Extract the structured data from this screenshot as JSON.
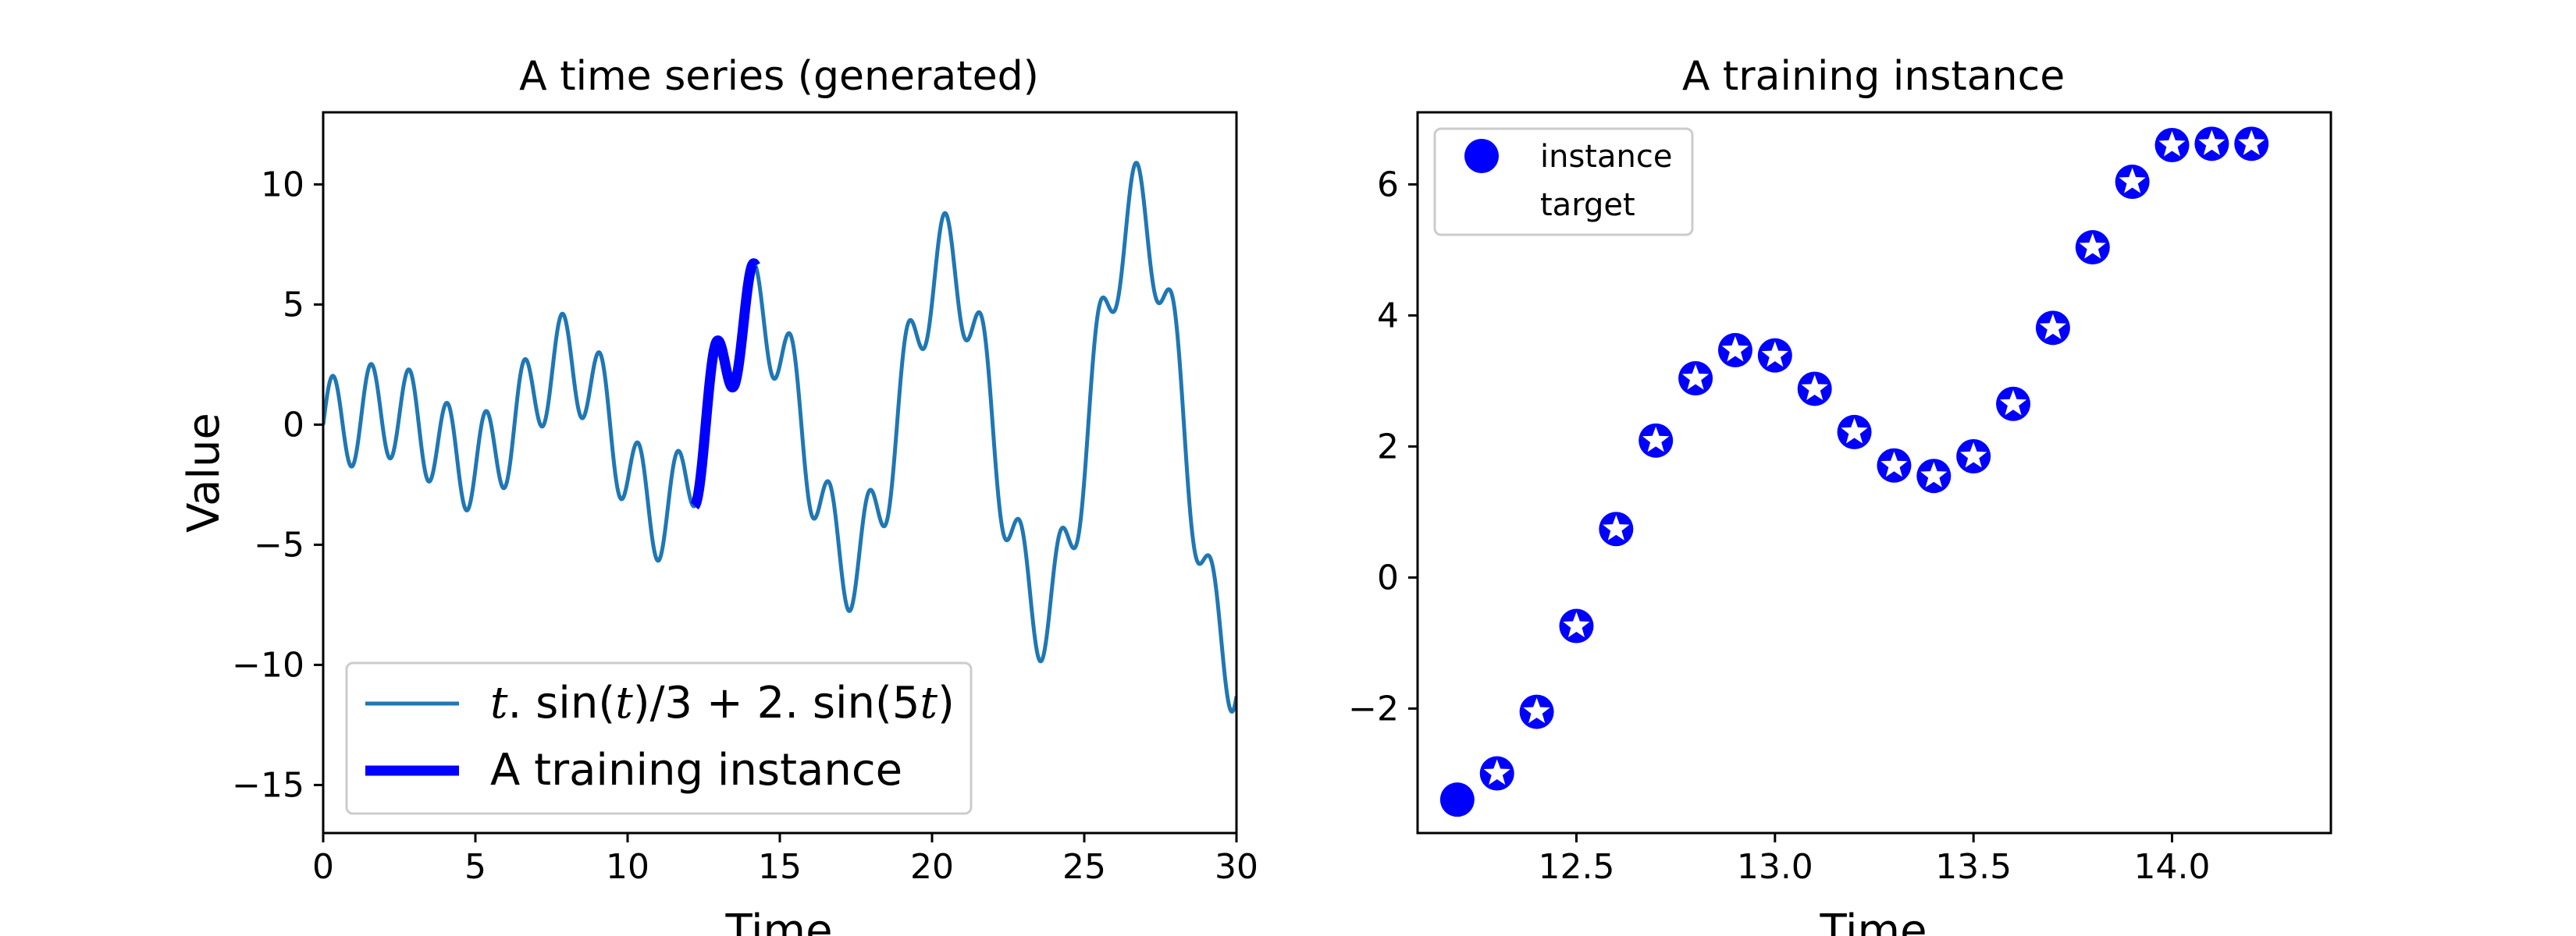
{
  "chart_data": [
    {
      "type": "line",
      "title": "A time series (generated)",
      "xlabel": "Time",
      "ylabel": "Value",
      "xlim": [
        0,
        30
      ],
      "ylim": [
        -17,
        13
      ],
      "xticks": [
        "0",
        "5",
        "10",
        "15",
        "20",
        "25",
        "30"
      ],
      "yticks": [
        "−15",
        "−10",
        "−5",
        "0",
        "5",
        "10"
      ],
      "xtick_values": [
        0,
        5,
        10,
        15,
        20,
        25,
        30
      ],
      "ytick_values": [
        -15,
        -10,
        -5,
        0,
        5,
        10
      ],
      "function": "t*sin(t)/3 + 2*sin(5t)",
      "series": [
        {
          "name": "t. sin(t)/3 + 2. sin(5t)",
          "color": "#1f77b4",
          "x_range": [
            0,
            30
          ]
        },
        {
          "name": "A training instance",
          "color": "#0000ff",
          "x_range": [
            12.2,
            14.2
          ]
        }
      ],
      "legend": {
        "placement": "lower-left",
        "entries": [
          {
            "label_parts": [
              "t",
              ". sin(",
              "t",
              ")/3 + 2. sin(5",
              "t",
              ")"
            ]
          },
          {
            "label": "A training instance"
          }
        ]
      }
    },
    {
      "type": "scatter",
      "title": "A training instance",
      "xlabel": "Time",
      "ylabel": "",
      "xlim": [
        12.1,
        14.4
      ],
      "ylim": [
        -3.9,
        7.1
      ],
      "xticks": [
        "12.5",
        "13.0",
        "13.5",
        "14.0"
      ],
      "yticks": [
        "−2",
        "0",
        "2",
        "4",
        "6"
      ],
      "xtick_values": [
        12.5,
        13.0,
        13.5,
        14.0
      ],
      "ytick_values": [
        -2,
        0,
        2,
        4,
        6
      ],
      "series": [
        {
          "name": "instance",
          "marker": "circle",
          "color": "#0000ff",
          "x": [
            12.2,
            12.3,
            12.4,
            12.5,
            12.6,
            12.7,
            12.8,
            12.9,
            13.0,
            13.1,
            13.2,
            13.3,
            13.4,
            13.5,
            13.6,
            13.7,
            13.8,
            13.9,
            14.0,
            14.1
          ],
          "y": [
            -3.39,
            -2.99,
            -2.05,
            -0.74,
            0.74,
            2.09,
            3.04,
            3.47,
            3.39,
            2.88,
            2.22,
            1.71,
            1.55,
            1.85,
            2.65,
            3.81,
            5.04,
            6.04,
            6.6,
            6.62
          ]
        },
        {
          "name": "target",
          "marker": "star",
          "color": "#ffffff",
          "x": [
            12.3,
            12.4,
            12.5,
            12.6,
            12.7,
            12.8,
            12.9,
            13.0,
            13.1,
            13.2,
            13.3,
            13.4,
            13.5,
            13.6,
            13.7,
            13.8,
            13.9,
            14.0,
            14.1,
            14.2
          ],
          "y": [
            -2.99,
            -2.05,
            -0.74,
            0.74,
            2.09,
            3.04,
            3.47,
            3.39,
            2.88,
            2.22,
            1.71,
            1.55,
            1.85,
            2.65,
            3.81,
            5.04,
            6.04,
            6.6,
            6.62,
            6.62
          ]
        }
      ],
      "legend": {
        "placement": "top-left",
        "entries": [
          {
            "label": "instance"
          },
          {
            "label": "target"
          }
        ]
      }
    }
  ]
}
